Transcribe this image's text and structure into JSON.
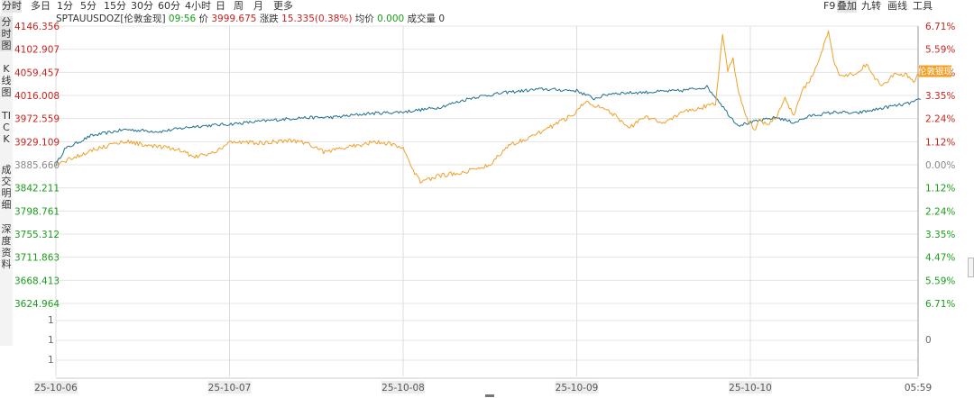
{
  "toolbar": {
    "periods": [
      "分时",
      "多日",
      "1分",
      "5分",
      "15分",
      "30分",
      "60分",
      "4小时",
      "日",
      "周",
      "月",
      "更多"
    ],
    "active_period": "分时",
    "right": [
      "F9",
      "叠加",
      "九转",
      "画线",
      "工具"
    ],
    "active_right": "叠加"
  },
  "side_tabs": [
    "分时图",
    "K线图",
    "TICK",
    "成交明细",
    "深度资料"
  ],
  "active_side_tab": "分时图",
  "info": {
    "symbol": "SPTAUUSDOZ[伦敦金现]",
    "time": "09:56",
    "price_label": "价",
    "price": "3999.675",
    "change_label": "涨跌",
    "change": "15.335(0.38%)",
    "avg_label": "均价",
    "avg": "0.000",
    "volume_label": "成交量",
    "volume": "0"
  },
  "colors": {
    "main_series": "#1e6f91",
    "overlay_series": "#f0a028",
    "up": "#c8241e",
    "down": "#1a9c1a",
    "neutral": "#888888",
    "grid": "#e4e4e4",
    "vgrid": "#dcdcdc"
  },
  "chart_data": {
    "type": "line",
    "x_dates": [
      "25-10-06",
      "25-10-07",
      "25-10-08",
      "25-10-09",
      "25-10-10"
    ],
    "x_end_label": "05:59",
    "y_left_ticks": [
      "4146.356",
      "4102.907",
      "4059.457",
      "4016.008",
      "3972.559",
      "3929.109",
      "3885.660",
      "3842.211",
      "3798.761",
      "3755.312",
      "3711.863",
      "3668.413",
      "3624.964"
    ],
    "y_right_ticks": [
      "6.71%",
      "5.59%",
      "4.47%",
      "3.35%",
      "2.24%",
      "1.12%",
      "0.00%",
      "1.12%",
      "2.24%",
      "3.35%",
      "4.47%",
      "5.59%",
      "6.71%"
    ],
    "base_price": 3885.66,
    "ylim": [
      3624.964,
      4146.356
    ],
    "volume_ticks": [
      "1",
      "1",
      "1",
      "1",
      "0"
    ],
    "overlay_badge": "伦敦银现",
    "series": [
      {
        "name": "伦敦金现",
        "role": "main",
        "unit": "price",
        "points": [
          [
            0.0,
            3885.7
          ],
          [
            0.05,
            3915.0
          ],
          [
            0.2,
            3940.0
          ],
          [
            0.4,
            3952.0
          ],
          [
            0.6,
            3948.0
          ],
          [
            0.8,
            3958.0
          ],
          [
            1.0,
            3962.0
          ],
          [
            1.2,
            3968.0
          ],
          [
            1.4,
            3974.0
          ],
          [
            1.6,
            3975.0
          ],
          [
            1.8,
            3982.0
          ],
          [
            2.0,
            3985.0
          ],
          [
            2.2,
            3993.0
          ],
          [
            2.4,
            4012.0
          ],
          [
            2.6,
            4022.0
          ],
          [
            2.8,
            4028.0
          ],
          [
            3.0,
            4025.0
          ],
          [
            3.1,
            4010.0
          ],
          [
            3.2,
            4020.0
          ],
          [
            3.4,
            4022.0
          ],
          [
            3.6,
            4025.0
          ],
          [
            3.75,
            4032.0
          ],
          [
            3.82,
            4005.0
          ],
          [
            3.88,
            3978.0
          ],
          [
            3.93,
            3960.0
          ],
          [
            4.0,
            3965.0
          ],
          [
            4.05,
            3968.0
          ],
          [
            4.15,
            3975.0
          ],
          [
            4.25,
            3965.0
          ],
          [
            4.35,
            3978.0
          ],
          [
            4.5,
            3985.0
          ],
          [
            4.6,
            3982.0
          ],
          [
            4.7,
            3988.0
          ],
          [
            4.8,
            3995.0
          ],
          [
            4.9,
            4000.0
          ],
          [
            4.98,
            4008.0
          ]
        ]
      },
      {
        "name": "伦敦银现",
        "role": "overlay",
        "unit": "pct",
        "points": [
          [
            0.0,
            0.0
          ],
          [
            0.2,
            0.7
          ],
          [
            0.4,
            1.15
          ],
          [
            0.55,
            0.9
          ],
          [
            0.7,
            0.75
          ],
          [
            0.8,
            0.4
          ],
          [
            0.9,
            0.55
          ],
          [
            1.0,
            1.1
          ],
          [
            1.2,
            1.05
          ],
          [
            1.35,
            1.2
          ],
          [
            1.45,
            1.05
          ],
          [
            1.55,
            0.6
          ],
          [
            1.7,
            0.9
          ],
          [
            1.85,
            1.1
          ],
          [
            1.95,
            1.0
          ],
          [
            2.0,
            0.8
          ],
          [
            2.05,
            -0.2
          ],
          [
            2.1,
            -0.8
          ],
          [
            2.2,
            -0.55
          ],
          [
            2.35,
            -0.35
          ],
          [
            2.5,
            0.0
          ],
          [
            2.6,
            0.9
          ],
          [
            2.8,
            1.6
          ],
          [
            2.95,
            2.3
          ],
          [
            3.0,
            2.6
          ],
          [
            3.05,
            3.1
          ],
          [
            3.2,
            2.5
          ],
          [
            3.3,
            1.8
          ],
          [
            3.4,
            2.3
          ],
          [
            3.5,
            2.0
          ],
          [
            3.6,
            2.55
          ],
          [
            3.7,
            2.7
          ],
          [
            3.8,
            3.0
          ],
          [
            3.84,
            6.3
          ],
          [
            3.87,
            4.6
          ],
          [
            3.9,
            5.2
          ],
          [
            3.92,
            4.0
          ],
          [
            3.95,
            3.0
          ],
          [
            3.98,
            2.2
          ],
          [
            4.03,
            1.7
          ],
          [
            4.05,
            2.2
          ],
          [
            4.1,
            1.9
          ],
          [
            4.15,
            2.3
          ],
          [
            4.2,
            3.2
          ],
          [
            4.25,
            2.4
          ],
          [
            4.3,
            3.6
          ],
          [
            4.35,
            4.2
          ],
          [
            4.4,
            5.2
          ],
          [
            4.45,
            6.4
          ],
          [
            4.48,
            5.0
          ],
          [
            4.52,
            4.3
          ],
          [
            4.6,
            4.4
          ],
          [
            4.67,
            4.85
          ],
          [
            4.75,
            3.8
          ],
          [
            4.82,
            4.3
          ],
          [
            4.9,
            4.4
          ],
          [
            4.94,
            4.0
          ],
          [
            4.98,
            4.55
          ]
        ]
      }
    ]
  }
}
